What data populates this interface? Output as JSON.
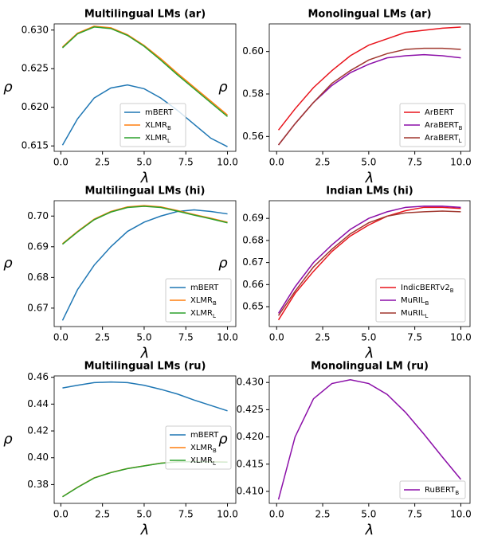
{
  "chart_data": [
    {
      "type": "line",
      "title": "Multilingual LMs (ar)",
      "x_label": "λ",
      "y_label": "ρ",
      "x": [
        0.1,
        1,
        2,
        3,
        4,
        5,
        6,
        7,
        8,
        9,
        10
      ],
      "series": [
        {
          "name": "mBERT",
          "color": "#1f77b4",
          "values": [
            0.6151,
            0.6185,
            0.6212,
            0.6225,
            0.6229,
            0.6224,
            0.6212,
            0.6196,
            0.6178,
            0.616,
            0.6149
          ]
        },
        {
          "name": "XLMR_B",
          "color": "#ff7f0e",
          "values": [
            0.6278,
            0.6296,
            0.6305,
            0.6303,
            0.6294,
            0.628,
            0.6263,
            0.6244,
            0.6226,
            0.6208,
            0.619
          ]
        },
        {
          "name": "XLMR_L",
          "color": "#2ca02c",
          "values": [
            0.6277,
            0.6295,
            0.6304,
            0.6302,
            0.6293,
            0.6279,
            0.6261,
            0.6242,
            0.6224,
            0.6206,
            0.6188
          ]
        }
      ],
      "xlim": [
        -0.4,
        10.5
      ],
      "xticks": [
        {
          "value": 0,
          "label": "0.0"
        },
        2.5,
        {
          "value": 5,
          "label": "5.0"
        },
        7.5,
        {
          "value": 10,
          "label": "10.0"
        }
      ],
      "ylim": [
        0.6143,
        0.6308
      ],
      "yticks": [
        0.615,
        {
          "value": 0.62,
          "label": "0.620"
        },
        0.625,
        {
          "value": 0.63,
          "label": "0.630"
        }
      ],
      "legend": "lower center"
    },
    {
      "type": "line",
      "title": "Monolingual LMs (ar)",
      "x_label": "λ",
      "y_label": "ρ",
      "x": [
        0.1,
        1,
        2,
        3,
        4,
        5,
        6,
        7,
        8,
        9,
        10
      ],
      "series": [
        {
          "name": "ArBERT",
          "color": "#e8141c",
          "values": [
            0.563,
            0.573,
            0.583,
            0.591,
            0.598,
            0.603,
            0.606,
            0.609,
            0.61,
            0.611,
            0.6115
          ]
        },
        {
          "name": "AraBERT_B",
          "color": "#8b0fa8",
          "values": [
            0.556,
            0.566,
            0.576,
            0.584,
            0.59,
            0.594,
            0.597,
            0.598,
            0.5985,
            0.598,
            0.597
          ]
        },
        {
          "name": "AraBERT_L",
          "color": "#a0372e",
          "values": [
            0.556,
            0.566,
            0.576,
            0.585,
            0.591,
            0.596,
            0.599,
            0.601,
            0.6015,
            0.6015,
            0.601
          ]
        }
      ],
      "xlim": [
        -0.4,
        10.5
      ],
      "xticks": [
        {
          "value": 0,
          "label": "0.0"
        },
        2.5,
        {
          "value": 5,
          "label": "5.0"
        },
        7.5,
        {
          "value": 10,
          "label": "10.0"
        }
      ],
      "ylim": [
        0.553,
        0.613
      ],
      "yticks": [
        0.56,
        0.58,
        {
          "value": 0.6,
          "label": "0.60"
        }
      ],
      "legend": "lower right"
    },
    {
      "type": "line",
      "title": "Multilingual LMs (hi)",
      "x_label": "λ",
      "y_label": "ρ",
      "x": [
        0.1,
        1,
        2,
        3,
        4,
        5,
        6,
        7,
        8,
        9,
        10
      ],
      "series": [
        {
          "name": "mBERT",
          "color": "#1f77b4",
          "values": [
            0.666,
            0.676,
            0.684,
            0.69,
            0.695,
            0.698,
            0.7,
            0.7015,
            0.702,
            0.7015,
            0.7007
          ]
        },
        {
          "name": "XLMR_B",
          "color": "#ff7f0e",
          "values": [
            0.691,
            0.695,
            0.699,
            0.7015,
            0.703,
            0.7034,
            0.703,
            0.7018,
            0.7005,
            0.6993,
            0.698
          ]
        },
        {
          "name": "XLMR_L",
          "color": "#2ca02c",
          "values": [
            0.6908,
            0.6948,
            0.6988,
            0.7013,
            0.7028,
            0.7032,
            0.7028,
            0.7016,
            0.7003,
            0.6991,
            0.6978
          ]
        }
      ],
      "xlim": [
        -0.4,
        10.5
      ],
      "xticks": [
        {
          "value": 0,
          "label": "0.0"
        },
        2.5,
        {
          "value": 5,
          "label": "5.0"
        },
        7.5,
        {
          "value": 10,
          "label": "10.0"
        }
      ],
      "ylim": [
        0.664,
        0.705
      ],
      "yticks": [
        0.67,
        0.68,
        0.69,
        {
          "value": 0.7,
          "label": "0.70"
        }
      ],
      "legend": "lower right"
    },
    {
      "type": "line",
      "title": "Indian LMs (hi)",
      "x_label": "λ",
      "y_label": "ρ",
      "x": [
        0.1,
        1,
        2,
        3,
        4,
        5,
        6,
        7,
        8,
        9,
        10
      ],
      "series": [
        {
          "name": "IndicBERTv2_B",
          "color": "#e8141c",
          "values": [
            0.644,
            0.656,
            0.666,
            0.675,
            0.682,
            0.687,
            0.691,
            0.6935,
            0.695,
            0.695,
            0.6945
          ]
        },
        {
          "name": "MuRIL_B",
          "color": "#8b0fa8",
          "values": [
            0.647,
            0.659,
            0.67,
            0.678,
            0.685,
            0.69,
            0.693,
            0.695,
            0.6955,
            0.6955,
            0.695
          ]
        },
        {
          "name": "MuRIL_L",
          "color": "#a0372e",
          "values": [
            0.646,
            0.657,
            0.668,
            0.676,
            0.683,
            0.688,
            0.691,
            0.6925,
            0.693,
            0.6933,
            0.693
          ]
        }
      ],
      "xlim": [
        -0.4,
        10.5
      ],
      "xticks": [
        {
          "value": 0,
          "label": "0.0"
        },
        2.5,
        {
          "value": 5,
          "label": "5.0"
        },
        7.5,
        {
          "value": 10,
          "label": "10.0"
        }
      ],
      "ylim": [
        0.641,
        0.698
      ],
      "yticks": [
        0.65,
        0.66,
        0.67,
        0.68,
        0.69
      ],
      "legend": "lower right"
    },
    {
      "type": "line",
      "title": "Multilingual LMs (ru)",
      "x_label": "λ",
      "y_label": "ρ",
      "x": [
        0.1,
        1,
        2,
        3,
        4,
        5,
        6,
        7,
        8,
        9,
        10
      ],
      "series": [
        {
          "name": "mBERT",
          "color": "#1f77b4",
          "values": [
            0.452,
            0.454,
            0.456,
            0.4565,
            0.456,
            0.454,
            0.451,
            0.4475,
            0.443,
            0.439,
            0.435
          ]
        },
        {
          "name": "XLMR_B",
          "color": "#ff7f0e",
          "values": [
            0.371,
            0.378,
            0.385,
            0.389,
            0.392,
            0.394,
            0.396,
            0.397,
            0.3972,
            0.397,
            0.3968
          ]
        },
        {
          "name": "XLMR_L",
          "color": "#2ca02c",
          "values": [
            0.3709,
            0.3779,
            0.3849,
            0.3889,
            0.3919,
            0.3939,
            0.3959,
            0.3969,
            0.3971,
            0.3969,
            0.3967
          ]
        }
      ],
      "xlim": [
        -0.4,
        10.5
      ],
      "xticks": [
        {
          "value": 0,
          "label": "0.0"
        },
        2.5,
        {
          "value": 5,
          "label": "5.0"
        },
        7.5,
        {
          "value": 10,
          "label": "10.0"
        }
      ],
      "ylim": [
        0.366,
        0.461
      ],
      "yticks": [
        0.38,
        {
          "value": 0.4,
          "label": "0.40"
        },
        0.42,
        0.44,
        0.46
      ],
      "legend": "center right"
    },
    {
      "type": "line",
      "title": "Monolingual LM (ru)",
      "x_label": "λ",
      "y_label": "ρ",
      "x": [
        0.1,
        1,
        2,
        3,
        4,
        5,
        6,
        7,
        8,
        9,
        10
      ],
      "series": [
        {
          "name": "RuBERT_B",
          "color": "#8b0fa8",
          "values": [
            0.4085,
            0.42,
            0.427,
            0.4298,
            0.4305,
            0.4298,
            0.4278,
            0.4245,
            0.4205,
            0.4163,
            0.4122
          ]
        }
      ],
      "xlim": [
        -0.4,
        10.5
      ],
      "xticks": [
        {
          "value": 0,
          "label": "0.0"
        },
        2.5,
        {
          "value": 5,
          "label": "5.0"
        },
        7.5,
        {
          "value": 10,
          "label": "10.0"
        }
      ],
      "ylim": [
        0.4078,
        0.4312
      ],
      "yticks": [
        {
          "value": 0.41,
          "label": "0.410"
        },
        0.415,
        {
          "value": 0.42,
          "label": "0.420"
        },
        0.425,
        {
          "value": 0.43,
          "label": "0.430"
        }
      ],
      "legend": "lower right"
    }
  ]
}
